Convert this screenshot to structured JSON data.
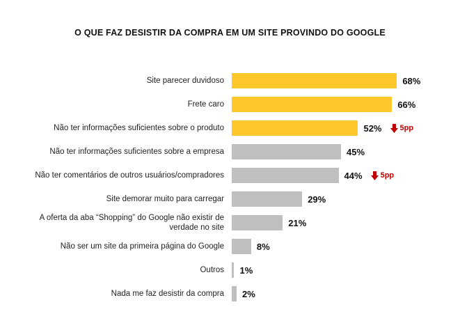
{
  "chart_data": {
    "type": "bar",
    "orientation": "horizontal",
    "title": "O QUE FAZ DESISTIR DA COMPRA EM UM SITE PROVINDO DO GOOGLE",
    "categories": [
      "Site parecer duvidoso",
      "Frete caro",
      "Não ter informações suficientes sobre o produto",
      "Não ter informações suficientes sobre a empresa",
      "Não ter comentários de outros usuários/compradores",
      "Site demorar muito para carregar",
      "A oferta da aba “Shopping” do Google não existir de verdade no site",
      "Não ser um site da primeira página do Google",
      "Outros",
      "Nada me faz desistir da compra"
    ],
    "values": [
      68,
      66,
      52,
      45,
      44,
      29,
      21,
      8,
      1,
      2
    ],
    "value_labels": [
      "68%",
      "66%",
      "52%",
      "45%",
      "44%",
      "29%",
      "21%",
      "8%",
      "1%",
      "2%"
    ],
    "colors": [
      "#FFC72C",
      "#FFC72C",
      "#FFC72C",
      "#BFBFBF",
      "#BFBFBF",
      "#BFBFBF",
      "#BFBFBF",
      "#BFBFBF",
      "#BFBFBF",
      "#BFBFBF"
    ],
    "changes": [
      null,
      null,
      -5,
      null,
      -5,
      null,
      null,
      null,
      null,
      null
    ],
    "change_labels": [
      null,
      null,
      "5pp",
      null,
      "5pp",
      null,
      null,
      null,
      null,
      null
    ],
    "change_color": "#C00000"
  }
}
